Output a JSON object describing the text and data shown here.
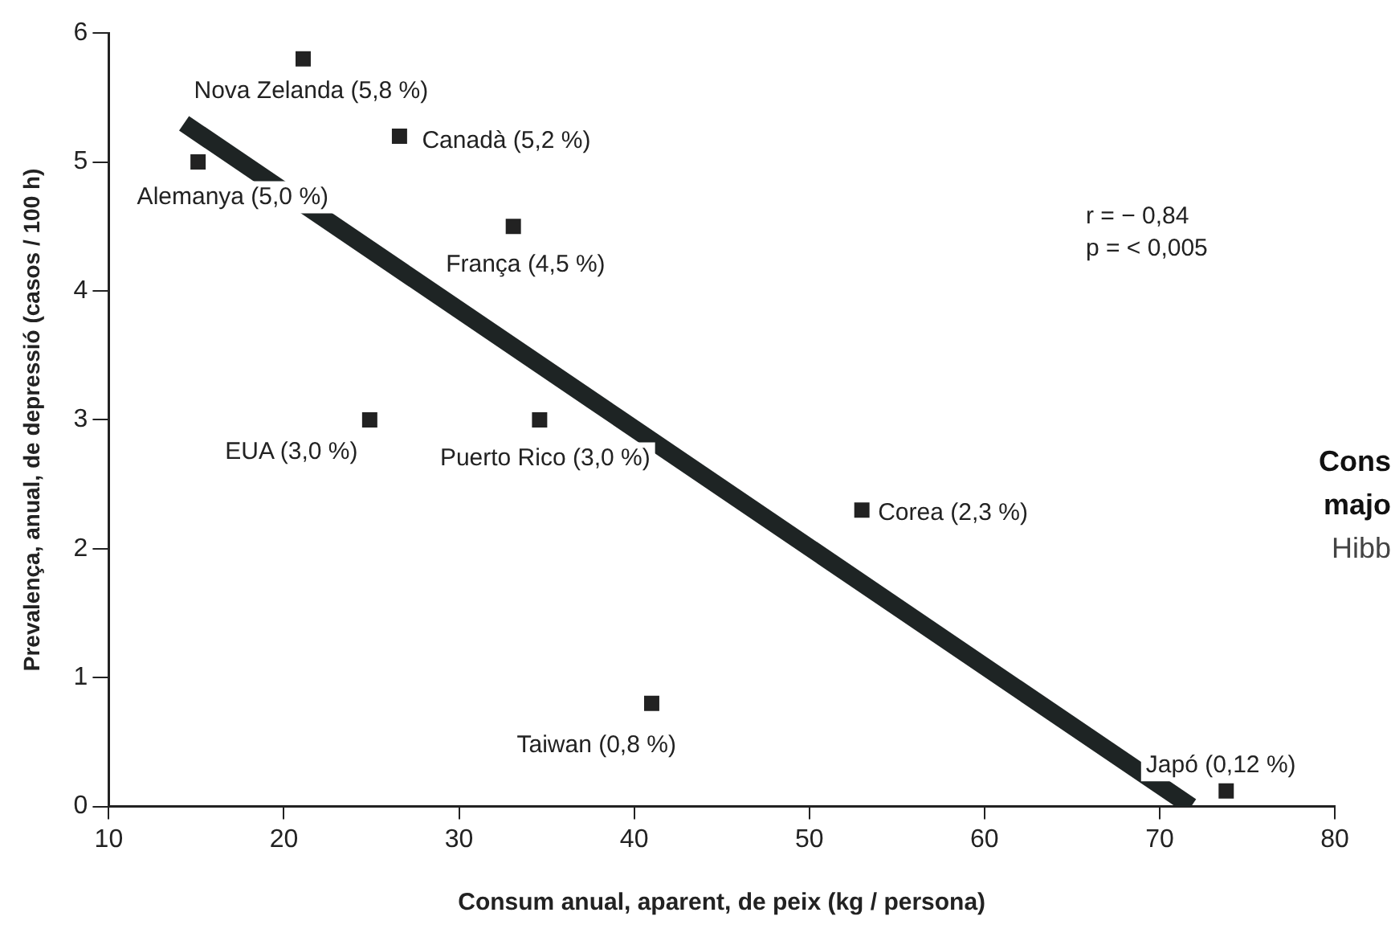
{
  "chart_data": {
    "type": "scatter",
    "xlabel": "Consum anual, aparent, de peix (kg / persona)",
    "ylabel": "Prevalença, anual, de depressió (casos / 100 h)",
    "xlim": [
      10,
      80
    ],
    "xticks": [
      10,
      20,
      30,
      40,
      50,
      60,
      70,
      80
    ],
    "ylim": [
      0,
      6
    ],
    "yticks": [
      0,
      1,
      2,
      3,
      4,
      5,
      6
    ],
    "grid": false,
    "legend": false,
    "series": [
      {
        "marker": "square",
        "color": "#222222",
        "x": [
          21.1,
          26.6,
          15.1,
          33.1,
          24.9,
          34.6,
          53.0,
          41.0,
          73.8
        ],
        "values": [
          5.8,
          5.2,
          5.0,
          4.5,
          3.0,
          3.0,
          2.3,
          0.8,
          0.12
        ],
        "value_labels": [
          "Nova Zelanda (5,8 %)",
          "Canadà (5,2 %)",
          "Alemanya (5,0 %)",
          "França (4,5 %)",
          "EUA (3,0 %)",
          "Puerto Rico (3,0 %)",
          "Corea (2,3 %)",
          "Taiwan (0,8 %)",
          "Japó (0,12 %)"
        ]
      },
      {
        "type": "line",
        "marker": "none",
        "color": "#1e2424",
        "x": [
          14.3,
          71.8
        ],
        "values": [
          5.3,
          0
        ]
      }
    ],
    "annotations": [
      "r = − 0,84",
      "p = < 0,005",
      "Cons",
      "majo",
      "Hibb"
    ]
  }
}
